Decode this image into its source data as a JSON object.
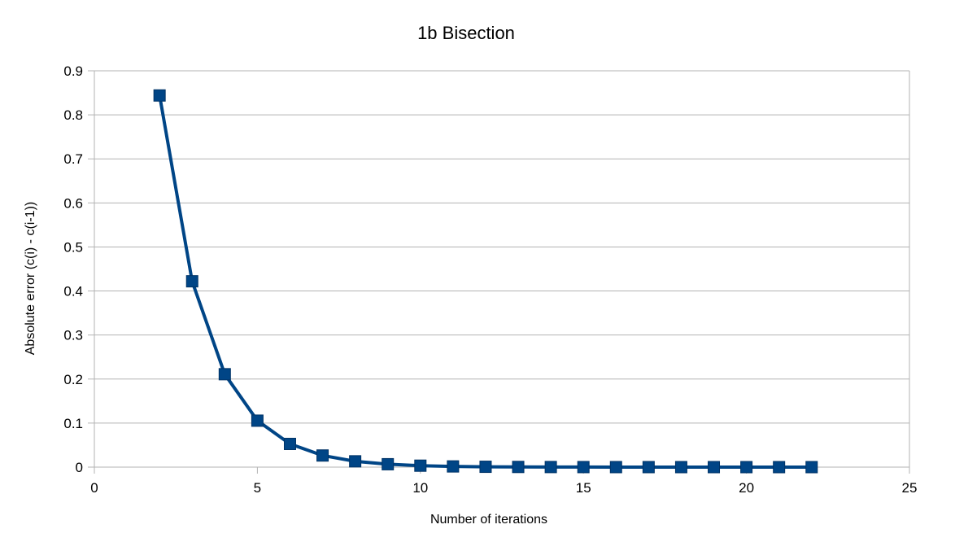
{
  "chart_data": {
    "type": "line",
    "title": "1b Bisection",
    "xlabel": "Number of iterations",
    "ylabel": "Absolute error (c(i) - c(i-1))",
    "xlim": [
      0,
      25
    ],
    "ylim": [
      0,
      0.9
    ],
    "xticks": [
      0,
      5,
      10,
      15,
      20,
      25
    ],
    "yticks": [
      0,
      0.1,
      0.2,
      0.3,
      0.4,
      0.5,
      0.6,
      0.7,
      0.8,
      0.9
    ],
    "xtick_labels": [
      "0",
      "5",
      "10",
      "15",
      "20",
      "25"
    ],
    "ytick_labels": [
      "0",
      "0.1",
      "0.2",
      "0.3",
      "0.4",
      "0.5",
      "0.6",
      "0.7",
      "0.8",
      "0.9"
    ],
    "grid": "horizontal",
    "legend": "none",
    "series": [
      {
        "color": "#004586",
        "marker": "square",
        "x": [
          2,
          3,
          4,
          5,
          6,
          7,
          8,
          9,
          10,
          11,
          12,
          13,
          14,
          15,
          16,
          17,
          18,
          19,
          20,
          21,
          22
        ],
        "y": [
          0.844,
          0.422,
          0.211,
          0.1055,
          0.0527,
          0.0264,
          0.0132,
          0.0066,
          0.0033,
          0.0016,
          0.0008,
          0.0004,
          0.0002,
          0.0001,
          5e-05,
          3e-05,
          1e-05,
          1e-05,
          0.0,
          0.0,
          0.0
        ]
      }
    ]
  }
}
